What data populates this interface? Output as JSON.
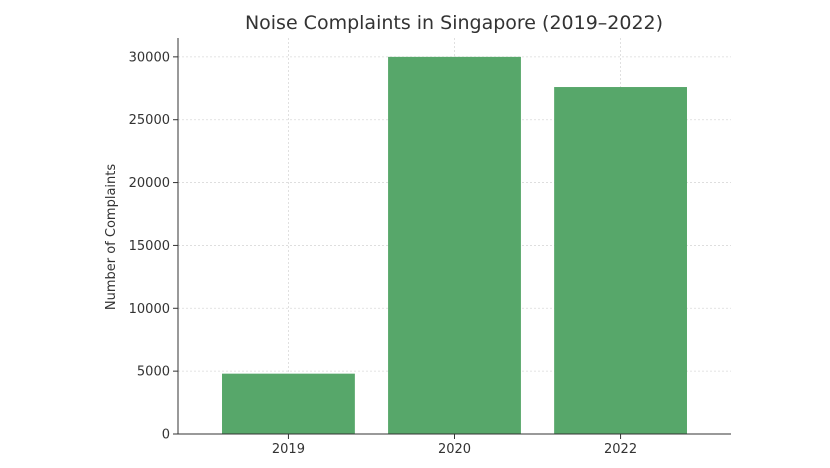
{
  "chart_data": {
    "type": "bar",
    "title": "Noise Complaints in Singapore (2019–2022)",
    "xlabel": "",
    "ylabel": "Number of Complaints",
    "categories": [
      "2019",
      "2020",
      "2022"
    ],
    "values": [
      4800,
      30000,
      27600
    ],
    "ylim": [
      0,
      31500
    ],
    "yticks": [
      0,
      5000,
      10000,
      15000,
      20000,
      25000,
      30000
    ],
    "grid": true,
    "bar_color": "#57a76a",
    "legend": "none"
  }
}
